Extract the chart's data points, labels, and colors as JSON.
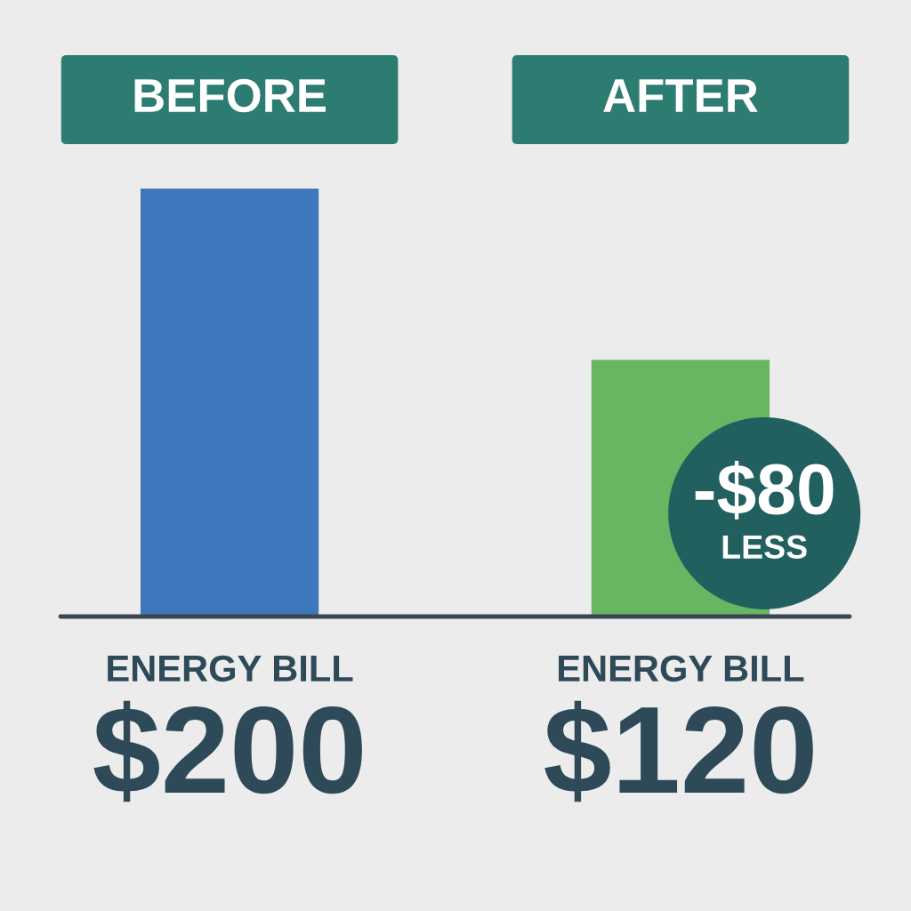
{
  "chart_data": {
    "type": "bar",
    "categories": [
      "BEFORE",
      "AFTER"
    ],
    "values": [
      200,
      120
    ],
    "value_labels": [
      "$200",
      "$120"
    ],
    "colors": [
      "#3e77bc",
      "#68b662"
    ],
    "tick_labels": "x",
    "annotations": [
      "ENERGY BILL",
      "ENERGY BILL",
      "-$80",
      "LESS"
    ]
  }
}
